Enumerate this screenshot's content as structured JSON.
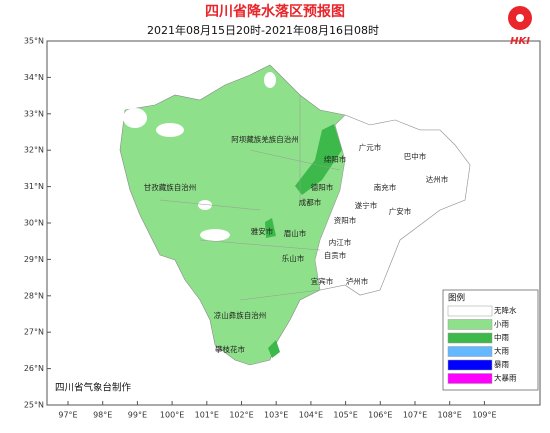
{
  "header": {
    "title": "四川省降水落区预报图",
    "subtitle": "2021年08月15日20时-2021年08月16日08时"
  },
  "axes": {
    "lat_labels": [
      "35°N",
      "34°N",
      "33°N",
      "32°N",
      "31°N",
      "30°N",
      "29°N",
      "28°N",
      "27°N",
      "26°N",
      "25°N"
    ],
    "lon_labels": [
      "97°E",
      "98°E",
      "99°E",
      "100°E",
      "101°E",
      "102°E",
      "103°E",
      "104°E",
      "105°E",
      "106°E",
      "107°E",
      "108°E",
      "109°E"
    ]
  },
  "places": [
    "阿坝藏族羌族自治州",
    "甘孜藏族自治州",
    "凉山彝族自治州",
    "攀枝花市",
    "绵阳市",
    "广元市",
    "巴中市",
    "达州市",
    "南充市",
    "德阳市",
    "成都市",
    "遂宁市",
    "广安市",
    "资阳市",
    "雅安市",
    "眉山市",
    "乐山市",
    "内江市",
    "自贡市",
    "宜宾市",
    "泸州市"
  ],
  "legend": {
    "title": "图例",
    "items": [
      {
        "label": "无降水",
        "color": "#ffffff"
      },
      {
        "label": "小雨",
        "color": "#8fe08a"
      },
      {
        "label": "中雨",
        "color": "#3cb94a"
      },
      {
        "label": "大雨",
        "color": "#63b8ff"
      },
      {
        "label": "暴雨",
        "color": "#0000ff"
      },
      {
        "label": "大暴雨",
        "color": "#ff00ff"
      }
    ]
  },
  "credit": "四川省气象台制作",
  "logo": {
    "text": "HKI"
  }
}
